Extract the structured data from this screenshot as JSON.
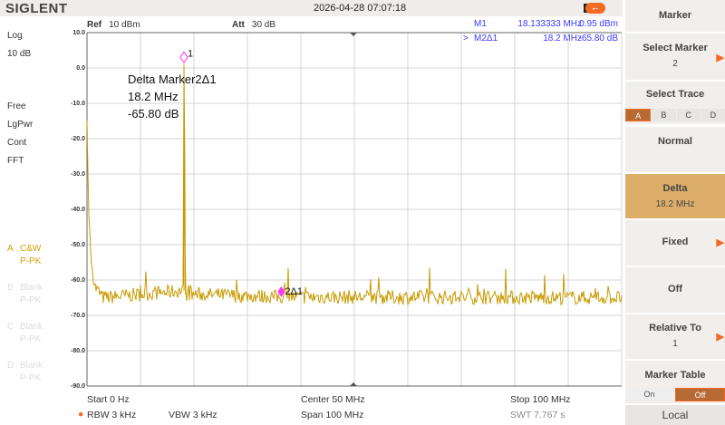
{
  "header": {
    "brand": "SIGLENT",
    "datetime": "2026-04-28 07:07:18",
    "ref_label": "Ref",
    "ref_value": "10 dBm",
    "att_label": "Att",
    "att_value": "30 dB"
  },
  "markers": [
    {
      "prefix": "",
      "name": "M1",
      "freq": "18.133333 MHz",
      "value": "0.95 dBm"
    },
    {
      "prefix": ">",
      "name": "M2Δ1",
      "freq": "18.2 MHz",
      "value": "-65.80 dB"
    }
  ],
  "annotation": {
    "title": "Delta Marker2Δ1",
    "freq": "18.2 MHz",
    "value": "-65.80 dB",
    "m1_label": "1",
    "m2_label": "2Δ1"
  },
  "left_panel": {
    "scale": "Log",
    "div": "10 dB",
    "trig": "Free",
    "detector": "LgPwr",
    "sweep": "Cont",
    "mode": "FFT",
    "traces": [
      {
        "id": "A",
        "type": "C&W",
        "det": "P-PK",
        "active": true
      },
      {
        "id": "B",
        "type": "Blank",
        "det": "P-PK",
        "active": false
      },
      {
        "id": "C",
        "type": "Blank",
        "det": "P-PK",
        "active": false
      },
      {
        "id": "D",
        "type": "Blank",
        "det": "P-PK",
        "active": false
      }
    ]
  },
  "bottom": {
    "start": "Start  0 Hz",
    "center": "Center  50 MHz",
    "stop": "Stop  100 MHz",
    "rbw": "RBW  3 kHz",
    "vbw": "VBW  3 kHz",
    "span": "Span     100 MHz",
    "swt": "SWT  7.767 s"
  },
  "menu": {
    "title": "Marker",
    "select_marker": "Select Marker",
    "select_marker_value": "2",
    "select_trace": "Select Trace",
    "trace_tabs": [
      "A",
      "B",
      "C",
      "D"
    ],
    "active_trace": "A",
    "normal": "Normal",
    "delta": "Delta",
    "delta_value": "18.2 MHz",
    "fixed": "Fixed",
    "off": "Off",
    "relative_to": "Relative To",
    "relative_to_value": "1",
    "marker_table": "Marker Table",
    "on": "On",
    "off_toggle": "Off",
    "local": "Local"
  },
  "colors": {
    "trace": "#c89a00",
    "marker": "#ff33ff",
    "accent": "#f26b22",
    "active_button": "#dcae6a",
    "marker_text": "#3a3aff"
  },
  "chart_data": {
    "type": "line",
    "xlim": [
      0,
      100
    ],
    "ylim": [
      -90,
      10
    ],
    "x_unit": "MHz",
    "y_unit": "dBm",
    "grid": true,
    "yticks": [
      "10.0",
      "0.0",
      "-10.0",
      "-20.0",
      "-30.0",
      "-40.0",
      "-50.0",
      "-60.0",
      "-70.0",
      "-80.0",
      "-90.0"
    ],
    "noise_floor": -65.5,
    "series": [
      {
        "points": [
          [
            0,
            -15
          ],
          [
            0.3,
            -40
          ],
          [
            0.8,
            -55
          ],
          [
            1.5,
            -62
          ],
          [
            3,
            -65
          ],
          [
            18.0,
            -63
          ],
          [
            18.13,
            0.95
          ],
          [
            18.2,
            -28
          ],
          [
            18.4,
            -64
          ],
          [
            20,
            -64
          ],
          [
            36.33,
            -64.8
          ],
          [
            100,
            -65
          ]
        ]
      }
    ],
    "markers": [
      {
        "x": 18.133333,
        "y": 0.95,
        "style": "open"
      },
      {
        "x": 36.333333,
        "y": -64.85,
        "style": "filled"
      }
    ]
  }
}
